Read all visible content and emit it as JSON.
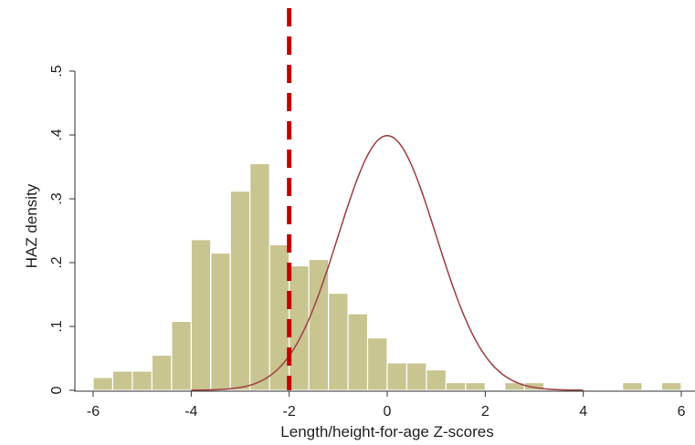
{
  "chart_data": {
    "type": "bar",
    "xlabel": "Length/height-for-age Z-scores",
    "ylabel": "HAZ density",
    "xlim": [
      -6.2,
      6.2
    ],
    "ylim": [
      0,
      0.5
    ],
    "x_ticks": [
      -6,
      -4,
      -2,
      0,
      2,
      4,
      6
    ],
    "x_tick_labels": [
      "-6",
      "-4",
      "-2",
      "0",
      "2",
      "4",
      "6"
    ],
    "y_ticks": [
      0,
      0.1,
      0.2,
      0.3,
      0.4,
      0.5
    ],
    "y_tick_labels": [
      "0",
      ".1",
      ".2",
      ".3",
      ".4",
      ".5"
    ],
    "histogram": {
      "bin_width": 0.4,
      "bins": [
        {
          "x0": -6.0,
          "density": 0.02
        },
        {
          "x0": -5.6,
          "density": 0.03
        },
        {
          "x0": -5.2,
          "density": 0.03
        },
        {
          "x0": -4.8,
          "density": 0.055
        },
        {
          "x0": -4.4,
          "density": 0.108
        },
        {
          "x0": -4.0,
          "density": 0.236
        },
        {
          "x0": -3.6,
          "density": 0.215
        },
        {
          "x0": -3.2,
          "density": 0.312
        },
        {
          "x0": -2.8,
          "density": 0.355
        },
        {
          "x0": -2.4,
          "density": 0.228
        },
        {
          "x0": -2.0,
          "density": 0.195
        },
        {
          "x0": -1.6,
          "density": 0.205
        },
        {
          "x0": -1.2,
          "density": 0.152
        },
        {
          "x0": -0.8,
          "density": 0.12
        },
        {
          "x0": -0.4,
          "density": 0.082
        },
        {
          "x0": 0.0,
          "density": 0.043
        },
        {
          "x0": 0.4,
          "density": 0.043
        },
        {
          "x0": 0.8,
          "density": 0.032
        },
        {
          "x0": 1.2,
          "density": 0.012
        },
        {
          "x0": 1.6,
          "density": 0.012
        },
        {
          "x0": 2.4,
          "density": 0.012
        },
        {
          "x0": 2.8,
          "density": 0.012
        },
        {
          "x0": 4.8,
          "density": 0.012
        },
        {
          "x0": 5.6,
          "density": 0.012
        }
      ]
    },
    "reference_curve": {
      "type": "normal",
      "mean": 0,
      "sd": 1
    },
    "cutoff_line": {
      "x": -2
    },
    "grid": false,
    "colors": {
      "bar_fill": "#c9c590",
      "bar_edge": "#ffffff",
      "curve": "#a0474a",
      "cutoff": "#c00000",
      "axis": "#333333"
    }
  }
}
